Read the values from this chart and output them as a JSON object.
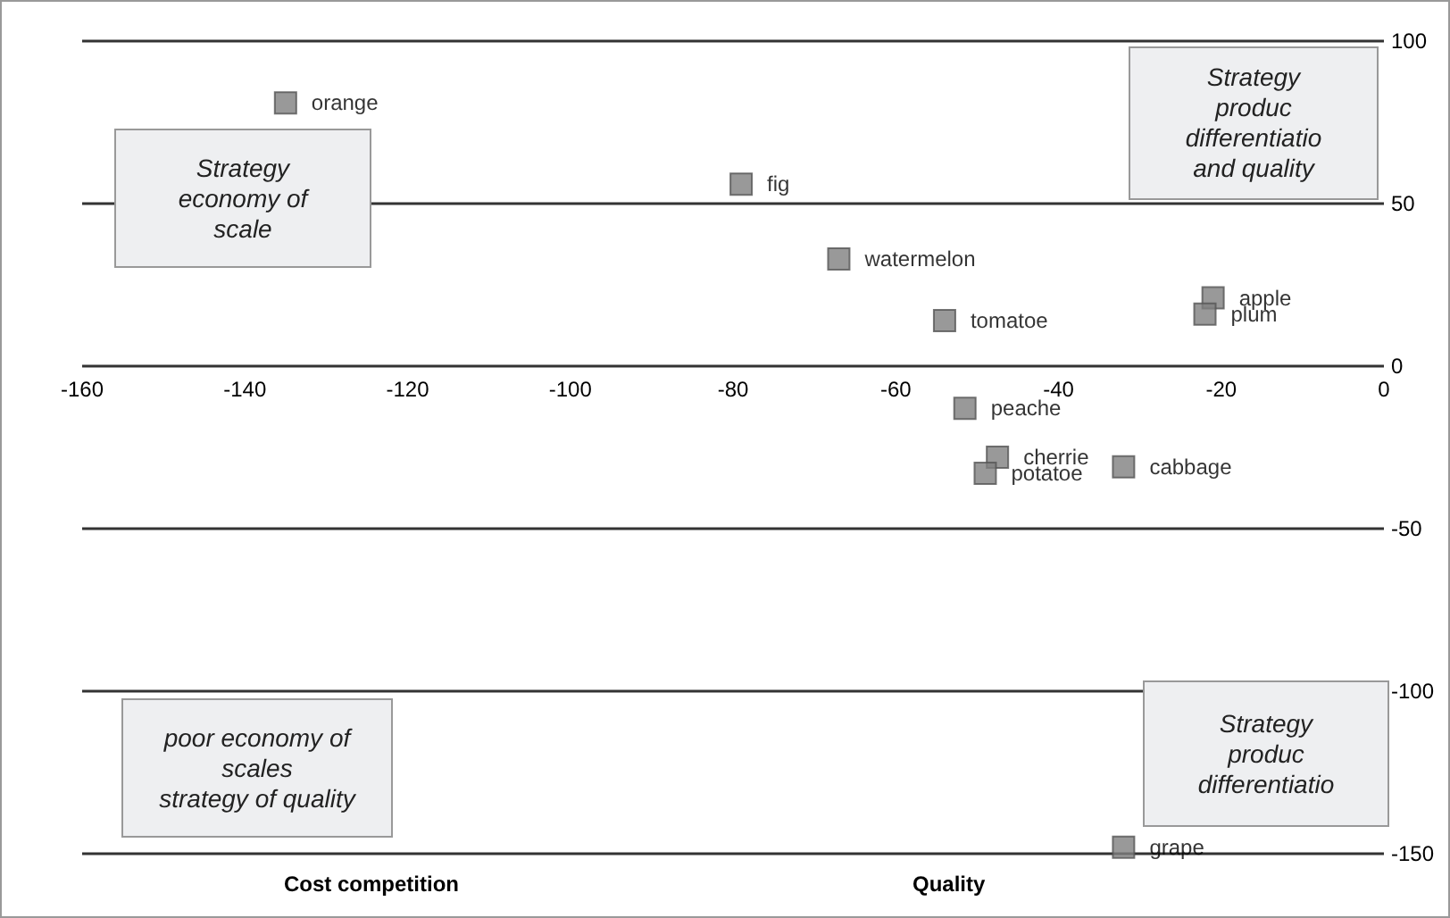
{
  "chart_data": {
    "type": "scatter",
    "xlim": [
      -160,
      0
    ],
    "xticks": [
      -160,
      -140,
      -120,
      -100,
      -80,
      -60,
      -40,
      -20,
      0
    ],
    "ylim": [
      -150,
      100
    ],
    "yticks": [
      -150,
      -100,
      -50,
      0,
      50,
      100
    ],
    "grid": "y",
    "legend": false,
    "marker": "square",
    "series": [
      {
        "name": "orange",
        "color": "#808080",
        "x": [
          -135
        ],
        "values": [
          81
        ]
      },
      {
        "name": "fig",
        "color": "#808080",
        "x": [
          -79
        ],
        "values": [
          56
        ]
      },
      {
        "name": "watermelon",
        "color": "#808080",
        "x": [
          -67
        ],
        "values": [
          33
        ]
      },
      {
        "name": "tomatoe",
        "color": "#808080",
        "x": [
          -54
        ],
        "values": [
          14
        ]
      },
      {
        "name": "apple",
        "color": "#808080",
        "x": [
          -21
        ],
        "values": [
          21
        ]
      },
      {
        "name": "plum",
        "color": "#808080",
        "x": [
          -22
        ],
        "values": [
          16
        ]
      },
      {
        "name": "peache",
        "color": "#808080",
        "x": [
          -51.5
        ],
        "values": [
          -13
        ]
      },
      {
        "name": "cherrie",
        "color": "#808080",
        "x": [
          -47.5
        ],
        "values": [
          -28
        ]
      },
      {
        "name": "potatoe",
        "color": "#808080",
        "x": [
          -49
        ],
        "values": [
          -33
        ]
      },
      {
        "name": "cabbage",
        "color": "#808080",
        "x": [
          -32
        ],
        "values": [
          -31
        ]
      },
      {
        "name": "grape",
        "color": "#808080",
        "x": [
          -32
        ],
        "values": [
          -148
        ]
      }
    ],
    "annotations": [
      "Strategy\neconomy of\nscale",
      "Strategy\nproduc\ndifferentiatio\nand quality",
      "poor economy of\nscales\nstrategy of quality",
      "Strategy\nproduc\ndifferentiatio",
      "Cost competition",
      "Quality"
    ]
  }
}
